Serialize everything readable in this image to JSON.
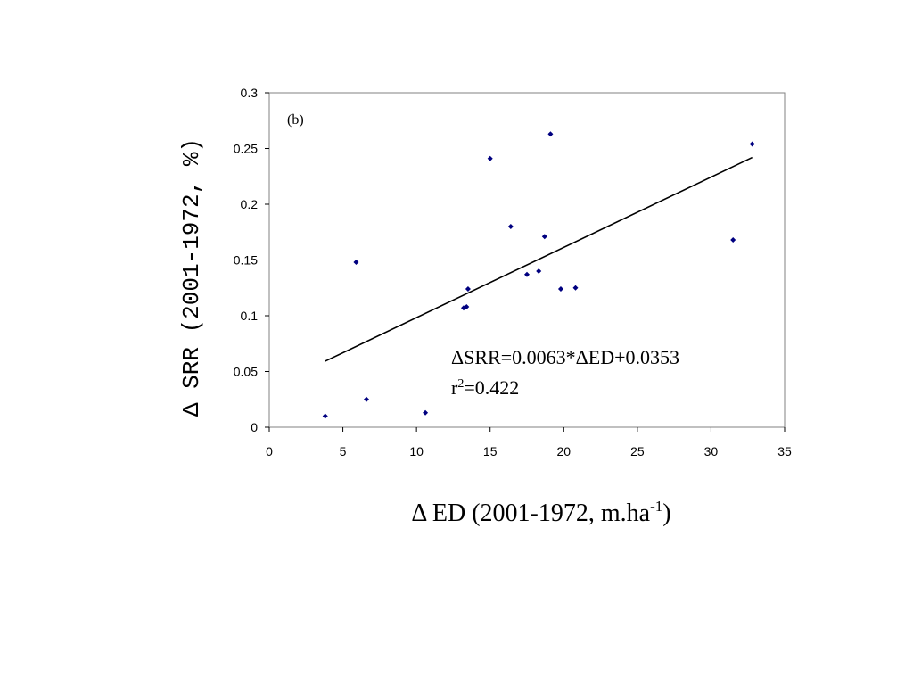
{
  "chart_data": {
    "type": "scatter",
    "panel_label": "(b)",
    "xlabel": {
      "prefix": "Δ ED (2001-1972, m.ha",
      "sup": "-1",
      "suffix": ")"
    },
    "ylabel": "Δ SRR (2001-1972, %)",
    "xlim": [
      0,
      35
    ],
    "ylim": [
      0,
      0.3
    ],
    "x_ticks": [
      0,
      5,
      10,
      15,
      20,
      25,
      30,
      35
    ],
    "y_ticks": [
      0,
      0.05,
      0.1,
      0.15,
      0.2,
      0.25,
      0.3
    ],
    "grid": false,
    "marker_color": "#000080",
    "points": [
      {
        "x": 3.8,
        "y": 0.01
      },
      {
        "x": 5.9,
        "y": 0.148
      },
      {
        "x": 6.6,
        "y": 0.025
      },
      {
        "x": 10.6,
        "y": 0.013
      },
      {
        "x": 13.2,
        "y": 0.107
      },
      {
        "x": 13.4,
        "y": 0.108
      },
      {
        "x": 13.5,
        "y": 0.124
      },
      {
        "x": 15.0,
        "y": 0.241
      },
      {
        "x": 16.4,
        "y": 0.18
      },
      {
        "x": 17.5,
        "y": 0.137
      },
      {
        "x": 18.3,
        "y": 0.14
      },
      {
        "x": 18.7,
        "y": 0.171
      },
      {
        "x": 19.1,
        "y": 0.263
      },
      {
        "x": 19.8,
        "y": 0.124
      },
      {
        "x": 20.8,
        "y": 0.125
      },
      {
        "x": 31.5,
        "y": 0.168
      },
      {
        "x": 32.8,
        "y": 0.254
      }
    ],
    "trendline": {
      "slope": 0.0063,
      "intercept": 0.0353,
      "x_start": 3.8,
      "x_end": 32.8,
      "color": "#000000"
    },
    "annotations": {
      "equation": "ΔSRR=0.0063*ΔED+0.0353",
      "r2_base": "r",
      "r2_sup": "2",
      "r2_value": "=0.422"
    }
  }
}
